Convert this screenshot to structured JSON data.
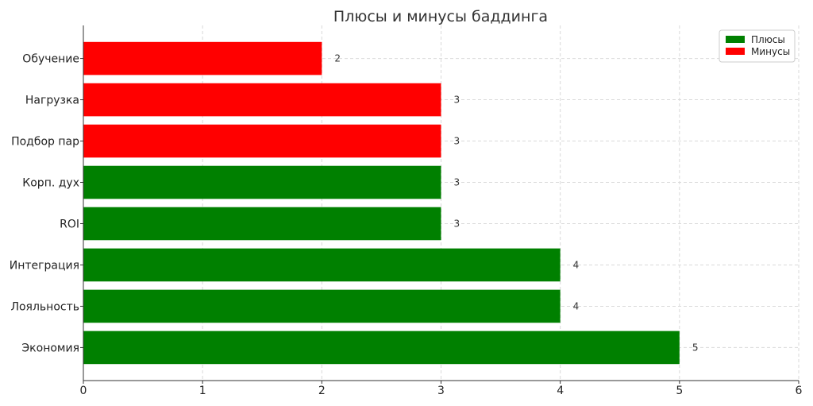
{
  "chart_data": {
    "type": "bar",
    "orientation": "horizontal",
    "title": "Плюсы и минусы баддинга",
    "xlabel": "",
    "ylabel": "",
    "xlim": [
      0,
      6
    ],
    "xticks": [
      0,
      1,
      2,
      3,
      4,
      5,
      6
    ],
    "grid": true,
    "legend_position": "top-right",
    "categories": [
      "Экономия",
      "Лояльность",
      "Интеграция",
      "ROI",
      "Корп. дух",
      "Подбор пар",
      "Нагрузка",
      "Обучение"
    ],
    "values": [
      5,
      4,
      4,
      3,
      3,
      3,
      3,
      2
    ],
    "groups": [
      "Плюсы",
      "Плюсы",
      "Плюсы",
      "Плюсы",
      "Плюсы",
      "Минусы",
      "Минусы",
      "Минусы"
    ],
    "series": [
      {
        "name": "Плюсы",
        "color": "#008000"
      },
      {
        "name": "Минусы",
        "color": "#ff0000"
      }
    ]
  }
}
